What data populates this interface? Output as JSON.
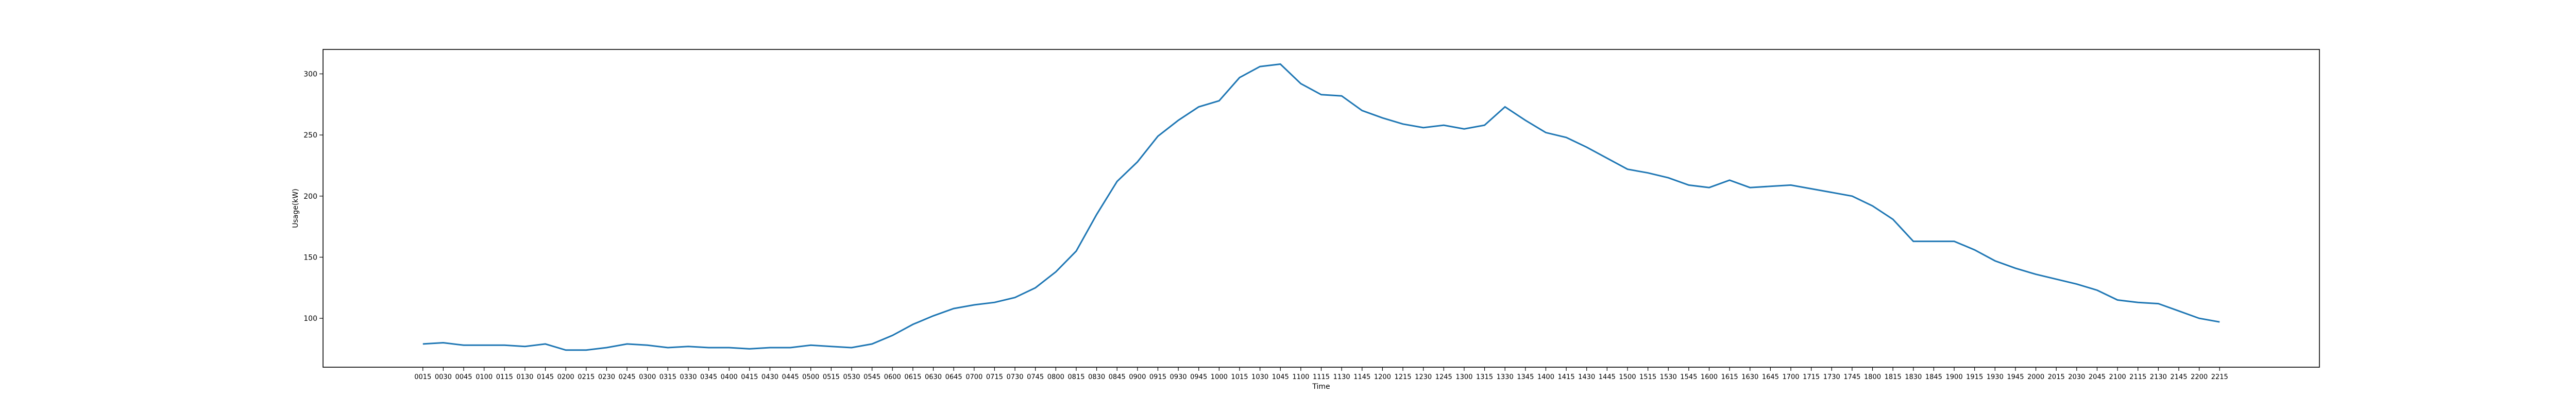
{
  "chart_data": {
    "type": "line",
    "title": "",
    "xlabel": "Time",
    "ylabel": "Usage(kW)",
    "x": [
      "0015",
      "0030",
      "0045",
      "0100",
      "0115",
      "0130",
      "0145",
      "0200",
      "0215",
      "0230",
      "0245",
      "0300",
      "0315",
      "0330",
      "0345",
      "0400",
      "0415",
      "0430",
      "0445",
      "0500",
      "0515",
      "0530",
      "0545",
      "0600",
      "0615",
      "0630",
      "0645",
      "0700",
      "0715",
      "0730",
      "0745",
      "0800",
      "0815",
      "0830",
      "0845",
      "0900",
      "0915",
      "0930",
      "0945",
      "1000",
      "1015",
      "1030",
      "1045",
      "1100",
      "1115",
      "1130",
      "1145",
      "1200",
      "1215",
      "1230",
      "1245",
      "1300",
      "1315",
      "1330",
      "1345",
      "1400",
      "1415",
      "1430",
      "1445",
      "1500",
      "1515",
      "1530",
      "1545",
      "1600",
      "1615",
      "1630",
      "1645",
      "1700",
      "1715",
      "1730",
      "1745",
      "1800",
      "1815",
      "1830",
      "1845",
      "1900",
      "1915",
      "1930",
      "1945",
      "2000",
      "2015",
      "2030",
      "2045",
      "2100",
      "2115",
      "2130",
      "2145",
      "2200",
      "2215"
    ],
    "series": [
      {
        "values": [
          79,
          80,
          78,
          78,
          78,
          77,
          79,
          74,
          74,
          76,
          79,
          78,
          76,
          77,
          76,
          76,
          75,
          76,
          76,
          78,
          77,
          76,
          79,
          86,
          95,
          102,
          108,
          111,
          113,
          117,
          125,
          138,
          155,
          185,
          212,
          228,
          249,
          262,
          273,
          278,
          297,
          306,
          308,
          292,
          283,
          282,
          270,
          264,
          259,
          256,
          258,
          255,
          258,
          273,
          262,
          252,
          248,
          240,
          231,
          222,
          219,
          215,
          209,
          207,
          213,
          207,
          208,
          209,
          206,
          203,
          200,
          192,
          181,
          163,
          163,
          163,
          156,
          147,
          141,
          136,
          132,
          128,
          123,
          115,
          113,
          112,
          106,
          100,
          97
        ],
        "color": "#1f77b4"
      }
    ],
    "ylim": [
      60,
      320
    ],
    "yticks": [
      100,
      150,
      200,
      250,
      300
    ],
    "grid": false,
    "legend": "none"
  }
}
